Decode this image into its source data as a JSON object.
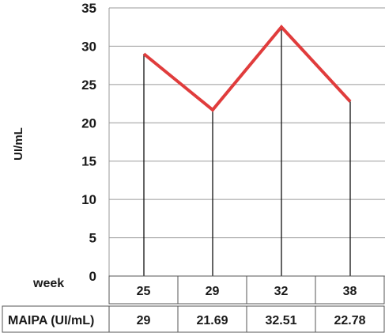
{
  "chart_data": {
    "type": "line",
    "ylabel": "UI/mL",
    "ylim": [
      0,
      35
    ],
    "yticks": [
      "0",
      "5",
      "10",
      "15",
      "20",
      "25",
      "30",
      "35"
    ],
    "grid": "horizontal",
    "line_color": "#e03c3c",
    "x_row_label": "week",
    "x": [
      "25",
      "29",
      "32",
      "38"
    ],
    "series": [
      {
        "name": "MAIPA (UI/mL)",
        "values": [
          29,
          21.69,
          32.51,
          22.78
        ],
        "labels": [
          "29",
          "21.69",
          "32.51",
          "22.78"
        ]
      }
    ]
  }
}
